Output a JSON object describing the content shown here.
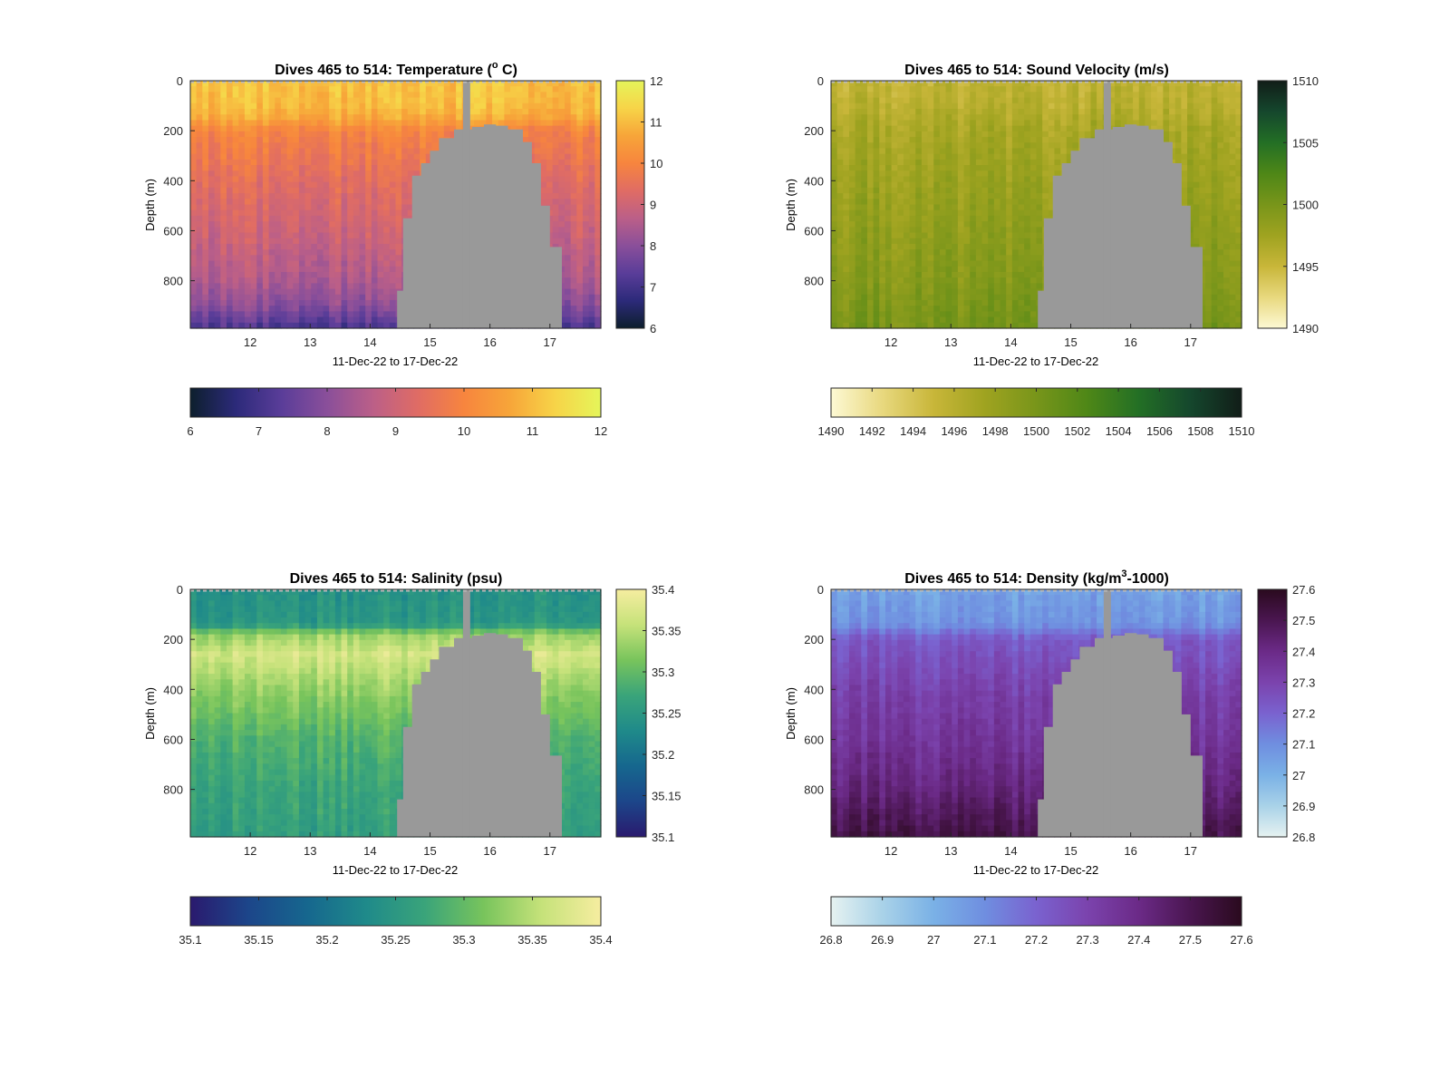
{
  "chart_data": [
    {
      "type": "heatmap",
      "title_main": "Dives 465 to 514: Temperature (",
      "title_sup": "o",
      "title_rest": " C)",
      "xlabel": "11-Dec-22 to 17-Dec-22",
      "ylabel": "Depth (m)",
      "xlim": [
        11.0,
        17.85
      ],
      "ylim": [
        0,
        990
      ],
      "xticks": [
        "12",
        "13",
        "14",
        "15",
        "16",
        "17"
      ],
      "yticks": [
        "0",
        "200",
        "400",
        "600",
        "800"
      ],
      "colormap": [
        "#0d1f2d",
        "#2c2a7a",
        "#5a3d99",
        "#8a4f9a",
        "#bb5f88",
        "#e06c64",
        "#f7853e",
        "#f7a539",
        "#f7d448",
        "#e5f55a"
      ],
      "clim": [
        6,
        12
      ],
      "colorbar_ticks": [
        "6",
        "7",
        "8",
        "9",
        "10",
        "11",
        "12"
      ],
      "hcolorbar_ticks": [
        "6",
        "7",
        "8",
        "9",
        "10",
        "11",
        "12"
      ],
      "profile": [
        [
          0,
          11.1
        ],
        [
          100,
          11.0
        ],
        [
          150,
          10.7
        ],
        [
          200,
          10.0
        ],
        [
          400,
          9.4
        ],
        [
          600,
          9.0
        ],
        [
          800,
          8.5
        ],
        [
          900,
          8.0
        ],
        [
          990,
          7.1
        ]
      ]
    },
    {
      "type": "heatmap",
      "title_main": "Dives 465 to 514: Sound Velocity (m/s)",
      "title_sup": "",
      "title_rest": "",
      "xlabel": "11-Dec-22 to 17-Dec-22",
      "ylabel": "Depth (m)",
      "xlim": [
        11.0,
        17.85
      ],
      "ylim": [
        0,
        990
      ],
      "xticks": [
        "12",
        "13",
        "14",
        "15",
        "16",
        "17"
      ],
      "yticks": [
        "0",
        "200",
        "400",
        "600",
        "800"
      ],
      "colormap": [
        "#fdf9d4",
        "#e8d87e",
        "#c8b639",
        "#9fa320",
        "#78951a",
        "#4e8717",
        "#236f25",
        "#15472d",
        "#111d18"
      ],
      "clim": [
        1490,
        1510
      ],
      "colorbar_ticks": [
        "1490",
        "1495",
        "1500",
        "1505",
        "1510"
      ],
      "hcolorbar_ticks": [
        "1490",
        "1492",
        "1494",
        "1496",
        "1498",
        "1500",
        "1502",
        "1504",
        "1506",
        "1508",
        "1510"
      ],
      "profile": [
        [
          0,
          1495.5
        ],
        [
          100,
          1496.0
        ],
        [
          200,
          1497.0
        ],
        [
          400,
          1497.8
        ],
        [
          600,
          1498.5
        ],
        [
          800,
          1499.2
        ],
        [
          990,
          1500.2
        ]
      ]
    },
    {
      "type": "heatmap",
      "title_main": "Dives 465 to 514: Salinity (psu)",
      "title_sup": "",
      "title_rest": "",
      "xlabel": "11-Dec-22 to 17-Dec-22",
      "ylabel": "Depth (m)",
      "xlim": [
        11.0,
        17.85
      ],
      "ylim": [
        0,
        990
      ],
      "xticks": [
        "12",
        "13",
        "14",
        "15",
        "16",
        "17"
      ],
      "yticks": [
        "0",
        "200",
        "400",
        "600",
        "800"
      ],
      "colormap": [
        "#2a1a6e",
        "#1c468a",
        "#16678e",
        "#1f8a8a",
        "#3aa47a",
        "#78c45c",
        "#c6e27a",
        "#f6eda0"
      ],
      "clim": [
        35.1,
        35.4
      ],
      "colorbar_ticks": [
        "35.1",
        "35.15",
        "35.2",
        "35.25",
        "35.3",
        "35.35",
        "35.4"
      ],
      "hcolorbar_ticks": [
        "35.1",
        "35.15",
        "35.2",
        "35.25",
        "35.3",
        "35.35",
        "35.4"
      ],
      "profile": [
        [
          0,
          35.24
        ],
        [
          140,
          35.25
        ],
        [
          180,
          35.33
        ],
        [
          260,
          35.37
        ],
        [
          400,
          35.33
        ],
        [
          600,
          35.29
        ],
        [
          800,
          35.27
        ],
        [
          990,
          35.26
        ]
      ]
    },
    {
      "type": "heatmap",
      "title_main": "Dives 465 to 514: Density (kg/m",
      "title_sup": "3",
      "title_rest": "-1000)",
      "xlabel": "11-Dec-22 to 17-Dec-22",
      "ylabel": "Depth (m)",
      "xlim": [
        11.0,
        17.85
      ],
      "ylim": [
        0,
        990
      ],
      "xticks": [
        "12",
        "13",
        "14",
        "15",
        "16",
        "17"
      ],
      "yticks": [
        "0",
        "200",
        "400",
        "600",
        "800"
      ],
      "colormap": [
        "#e6f2f1",
        "#a9d2e8",
        "#7ab1e6",
        "#6f8ee0",
        "#7a62cf",
        "#7b43ad",
        "#6b2a87",
        "#4a1650",
        "#2a0a1e"
      ],
      "clim": [
        26.8,
        27.6
      ],
      "colorbar_ticks": [
        "26.8",
        "26.9",
        "27",
        "27.1",
        "27.2",
        "27.3",
        "27.4",
        "27.5",
        "27.6"
      ],
      "hcolorbar_ticks": [
        "26.8",
        "26.9",
        "27",
        "27.1",
        "27.2",
        "27.3",
        "27.4",
        "27.5",
        "27.6"
      ],
      "profile": [
        [
          0,
          27.04
        ],
        [
          140,
          27.08
        ],
        [
          200,
          27.22
        ],
        [
          400,
          27.3
        ],
        [
          600,
          27.35
        ],
        [
          800,
          27.42
        ],
        [
          990,
          27.52
        ]
      ]
    }
  ],
  "data_gap": {
    "color": "#999999",
    "spike_x": [
      15.55,
      15.67
    ],
    "outline": [
      [
        14.45,
        990
      ],
      [
        14.45,
        840
      ],
      [
        14.55,
        840
      ],
      [
        14.55,
        550
      ],
      [
        14.7,
        550
      ],
      [
        14.7,
        380
      ],
      [
        14.85,
        380
      ],
      [
        14.85,
        330
      ],
      [
        15.0,
        330
      ],
      [
        15.0,
        280
      ],
      [
        15.15,
        280
      ],
      [
        15.15,
        230
      ],
      [
        15.4,
        230
      ],
      [
        15.4,
        195
      ],
      [
        15.7,
        195
      ],
      [
        15.7,
        185
      ],
      [
        15.9,
        185
      ],
      [
        15.9,
        175
      ],
      [
        16.1,
        175
      ],
      [
        16.1,
        180
      ],
      [
        16.3,
        180
      ],
      [
        16.3,
        195
      ],
      [
        16.55,
        195
      ],
      [
        16.55,
        245
      ],
      [
        16.7,
        245
      ],
      [
        16.7,
        330
      ],
      [
        16.85,
        330
      ],
      [
        16.85,
        500
      ],
      [
        17.0,
        500
      ],
      [
        17.0,
        665
      ],
      [
        17.2,
        665
      ],
      [
        17.2,
        990
      ]
    ]
  }
}
